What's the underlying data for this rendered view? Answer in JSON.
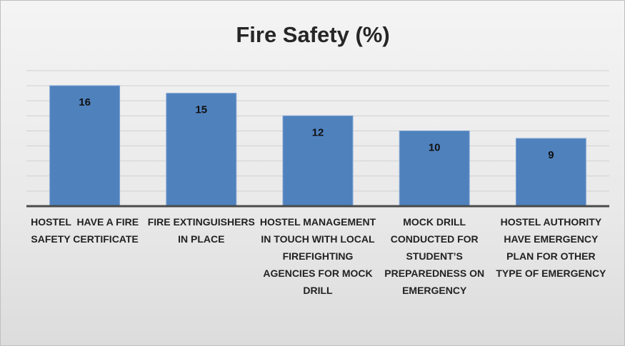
{
  "chart_data": {
    "type": "bar",
    "title": "Fire Safety (%)",
    "categories": [
      "HOSTEL  HAVE A FIRE SAFETY CERTIFICATE",
      "FIRE EXTINGUISHERS IN PLACE",
      "HOSTEL MANAGEMENT IN TOUCH WITH LOCAL FIREFIGHTING AGENCIES FOR MOCK DRILL",
      "MOCK DRILL CONDUCTED FOR STUDENT’S PREPAREDNESS ON EMERGENCY",
      "HOSTEL AUTHORITY HAVE EMERGENCY PLAN FOR OTHER TYPE OF EMERGENCY"
    ],
    "values": [
      16,
      15,
      12,
      10,
      9
    ],
    "color": "#4f81bd",
    "ylim": [
      0,
      18
    ],
    "yticks": [
      0,
      2,
      4,
      6,
      8,
      10,
      12,
      14,
      16,
      18
    ],
    "grid": true
  }
}
